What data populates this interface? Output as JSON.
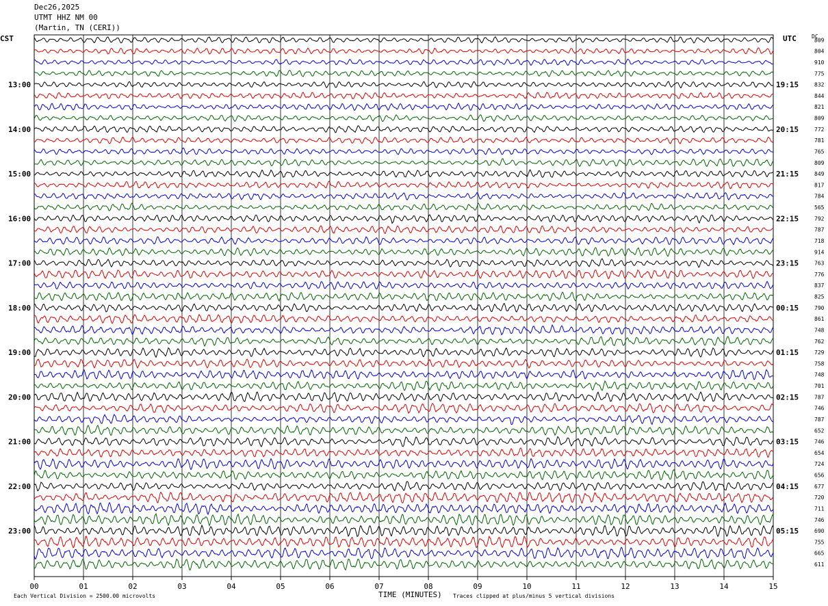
{
  "header": {
    "date": "Dec26,2025",
    "station": "UTMT HHZ NM 00",
    "location": "(Martin, TN (CERI))"
  },
  "left_axis_label": "CST",
  "right_axis_label": "UTC",
  "dc_label": "DC",
  "footer": {
    "scale_note": "Each Vertical Division = 2500.00 microvolts",
    "xlabel": "TIME (MINUTES)",
    "clip_note": "Traces clipped at plus/minus 5 vertical divisions"
  },
  "colors": {
    "trace_cycle": [
      "#000000",
      "#e00000",
      "#0000e0",
      "#006400"
    ],
    "grid": "#000000",
    "background": "#ffffff"
  },
  "chart_data": {
    "type": "line",
    "subtype": "helicorder",
    "x_ticks": [
      "00",
      "01",
      "02",
      "03",
      "04",
      "05",
      "06",
      "07",
      "08",
      "09",
      "10",
      "11",
      "12",
      "13",
      "14",
      "15"
    ],
    "xlim": [
      0,
      15
    ],
    "trace_count": 48,
    "trace_minutes": 15,
    "cst_hours": [
      "13:00",
      "14:00",
      "15:00",
      "16:00",
      "17:00",
      "18:00",
      "19:00",
      "20:00",
      "21:00",
      "22:00",
      "23:00"
    ],
    "utc_hours": [
      "19:15",
      "20:15",
      "21:15",
      "22:15",
      "23:15",
      "00:15",
      "01:15",
      "02:15",
      "03:15",
      "04:15",
      "05:15"
    ],
    "hour_label_start_trace": 4,
    "traces_per_hour": 4,
    "dc_offsets": [
      "809",
      "804",
      "910",
      "775",
      "832",
      "844",
      "821",
      "809",
      "772",
      "781",
      "765",
      "809",
      "849",
      "817",
      "784",
      "565",
      "792",
      "787",
      "718",
      "914",
      "763",
      "776",
      "837",
      "825",
      "790",
      "861",
      "748",
      "762",
      "729",
      "758",
      "748",
      "701",
      "787",
      "746",
      "787",
      "652",
      "746",
      "654",
      "724",
      "656",
      "677",
      "720",
      "711",
      "746",
      "690",
      "755",
      "665",
      "611"
    ],
    "events": [
      {
        "trace": 16,
        "minute": 7.3
      },
      {
        "trace": 24,
        "minute": 8.9
      },
      {
        "trace": 34,
        "minute": 9.7
      },
      {
        "trace": 35,
        "minute": 6.9
      },
      {
        "trace": 37,
        "minute": 2.7
      },
      {
        "trace": 44,
        "minute": 13.8
      }
    ]
  }
}
